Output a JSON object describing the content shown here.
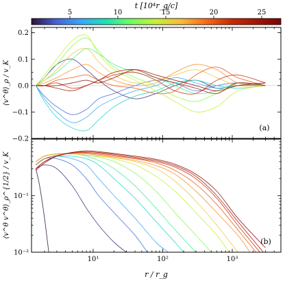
{
  "chart_data": [
    {
      "panel_label": "(a)",
      "type": "line",
      "ylabel": "⟨v^θ⟩_ρ / v_K",
      "xlabel": "",
      "xscale": "log",
      "xlim": [
        1.3,
        5000
      ],
      "ylim": [
        -0.2,
        0.22
      ],
      "ytick_labels": [
        "−0.2",
        "−0.1",
        "0.0",
        "0.1",
        "0.2"
      ],
      "ytick_values": [
        -0.2,
        -0.1,
        0.0,
        0.1,
        0.2
      ],
      "series_note": "one curve per snapshot time t, colored by colorbar",
      "series": [
        {
          "t": 2,
          "x": [
            1.5,
            2,
            3,
            5,
            8,
            12,
            20,
            40,
            80,
            150,
            300,
            600,
            1200,
            3000
          ],
          "y": [
            0.0,
            0.03,
            0.08,
            0.1,
            0.06,
            0.02,
            -0.02,
            -0.05,
            -0.03,
            0.0,
            0.02,
            -0.01,
            0.0,
            0.0
          ]
        },
        {
          "t": 4,
          "x": [
            1.5,
            2,
            3,
            5,
            8,
            12,
            20,
            40,
            80,
            150,
            300,
            600,
            1200,
            3000
          ],
          "y": [
            0.0,
            -0.04,
            -0.08,
            -0.11,
            -0.09,
            -0.05,
            -0.03,
            0.0,
            0.02,
            0.01,
            -0.02,
            0.0,
            0.01,
            0.0
          ]
        },
        {
          "t": 6,
          "x": [
            1.5,
            2,
            3,
            5,
            8,
            12,
            20,
            40,
            80,
            150,
            300,
            600,
            1200,
            3000
          ],
          "y": [
            0.0,
            -0.05,
            -0.1,
            -0.14,
            -0.12,
            -0.08,
            -0.05,
            -0.02,
            0.0,
            0.03,
            0.01,
            -0.01,
            0.0,
            0.0
          ]
        },
        {
          "t": 8,
          "x": [
            1.5,
            2,
            3,
            5,
            8,
            12,
            20,
            40,
            80,
            150,
            300,
            600,
            1200,
            3000
          ],
          "y": [
            0.0,
            -0.06,
            -0.12,
            -0.16,
            -0.17,
            -0.13,
            -0.08,
            -0.04,
            -0.02,
            0.01,
            0.02,
            0.0,
            -0.01,
            0.0
          ]
        },
        {
          "t": 10,
          "x": [
            1.5,
            2,
            3,
            5,
            8,
            12,
            20,
            40,
            80,
            150,
            300,
            600,
            1200,
            3000
          ],
          "y": [
            0.0,
            0.02,
            0.05,
            0.1,
            0.14,
            0.12,
            0.08,
            0.05,
            0.03,
            0.0,
            -0.03,
            -0.02,
            0.01,
            0.0
          ]
        },
        {
          "t": 12,
          "x": [
            1.5,
            2,
            3,
            5,
            8,
            12,
            20,
            40,
            80,
            150,
            300,
            600,
            1200,
            3000
          ],
          "y": [
            0.0,
            0.03,
            0.08,
            0.15,
            0.18,
            0.13,
            0.07,
            0.03,
            0.0,
            -0.04,
            -0.06,
            -0.03,
            0.0,
            0.0
          ]
        },
        {
          "t": 14,
          "x": [
            1.5,
            2,
            3,
            5,
            8,
            12,
            20,
            40,
            80,
            150,
            300,
            600,
            1200,
            3000
          ],
          "y": [
            0.0,
            0.04,
            0.1,
            0.17,
            0.19,
            0.12,
            0.06,
            0.02,
            -0.02,
            -0.06,
            -0.1,
            -0.08,
            -0.02,
            0.0
          ]
        },
        {
          "t": 16,
          "x": [
            1.5,
            2,
            3,
            5,
            8,
            12,
            20,
            40,
            80,
            150,
            300,
            600,
            1200,
            3000
          ],
          "y": [
            0.0,
            0.02,
            0.06,
            0.12,
            0.14,
            0.09,
            0.04,
            0.01,
            0.02,
            0.04,
            0.06,
            0.03,
            0.0,
            0.0
          ]
        },
        {
          "t": 18,
          "x": [
            1.5,
            2,
            3,
            5,
            8,
            12,
            20,
            40,
            80,
            150,
            300,
            600,
            1200,
            3000
          ],
          "y": [
            0.0,
            0.01,
            0.03,
            0.06,
            0.08,
            0.05,
            0.02,
            0.0,
            0.01,
            0.05,
            0.08,
            0.06,
            0.01,
            0.0
          ]
        },
        {
          "t": 20,
          "x": [
            1.5,
            2,
            3,
            5,
            8,
            12,
            20,
            40,
            80,
            150,
            300,
            600,
            1200,
            3000
          ],
          "y": [
            0.0,
            0.0,
            0.02,
            0.03,
            0.04,
            0.02,
            0.0,
            -0.01,
            -0.03,
            -0.02,
            0.04,
            0.07,
            0.03,
            0.0
          ]
        },
        {
          "t": 22,
          "x": [
            1.5,
            2,
            3,
            5,
            8,
            12,
            20,
            40,
            80,
            150,
            300,
            600,
            1200,
            3000
          ],
          "y": [
            0.0,
            0.0,
            0.01,
            -0.01,
            0.0,
            0.02,
            0.04,
            0.05,
            0.02,
            -0.02,
            -0.03,
            0.02,
            0.04,
            0.01
          ]
        },
        {
          "t": 24,
          "x": [
            1.5,
            2,
            3,
            5,
            8,
            12,
            20,
            40,
            80,
            150,
            300,
            600,
            1200,
            3000
          ],
          "y": [
            0.0,
            0.0,
            -0.01,
            -0.02,
            0.0,
            0.02,
            0.05,
            0.06,
            0.03,
            0.01,
            -0.01,
            -0.03,
            0.01,
            0.0
          ]
        },
        {
          "t": 26,
          "x": [
            1.5,
            2,
            3,
            5,
            8,
            12,
            20,
            40,
            80,
            150,
            300,
            600,
            1200,
            3000
          ],
          "y": [
            0.0,
            0.0,
            0.0,
            0.01,
            0.02,
            0.01,
            0.03,
            0.06,
            0.04,
            0.02,
            0.0,
            -0.02,
            0.0,
            0.01
          ]
        }
      ]
    },
    {
      "panel_label": "(b)",
      "type": "line",
      "ylabel": "⟨v^θ v^θ⟩_ρ^{1/2} / v_K",
      "xlabel": "r / r_g",
      "xscale": "log",
      "yscale": "log",
      "xlim": [
        1.3,
        5000
      ],
      "ylim": [
        0.01,
        1.0
      ],
      "xtick_labels": [
        "10¹",
        "10²",
        "10³"
      ],
      "xtick_values": [
        10,
        100,
        1000
      ],
      "ytick_labels": [
        "10⁻²",
        "10⁻¹"
      ],
      "ytick_values": [
        0.01,
        0.1
      ],
      "series": [
        {
          "t": 1,
          "x": [
            1.5,
            1.7,
            2,
            2.3
          ],
          "y": [
            0.3,
            0.15,
            0.04,
            0.01
          ]
        },
        {
          "t": 2,
          "x": [
            1.5,
            2,
            3,
            5,
            8,
            12,
            20,
            30
          ],
          "y": [
            0.3,
            0.35,
            0.3,
            0.15,
            0.06,
            0.03,
            0.015,
            0.01
          ]
        },
        {
          "t": 4,
          "x": [
            1.5,
            2,
            3,
            5,
            8,
            12,
            20,
            40,
            60
          ],
          "y": [
            0.35,
            0.45,
            0.45,
            0.35,
            0.2,
            0.1,
            0.05,
            0.02,
            0.01
          ]
        },
        {
          "t": 6,
          "x": [
            1.5,
            2,
            3,
            5,
            8,
            12,
            20,
            40,
            80,
            120
          ],
          "y": [
            0.35,
            0.45,
            0.5,
            0.45,
            0.35,
            0.2,
            0.1,
            0.04,
            0.015,
            0.01
          ]
        },
        {
          "t": 8,
          "x": [
            1.5,
            2,
            3,
            5,
            8,
            12,
            20,
            40,
            80,
            150,
            200
          ],
          "y": [
            0.35,
            0.45,
            0.5,
            0.5,
            0.45,
            0.35,
            0.2,
            0.09,
            0.035,
            0.015,
            0.01
          ]
        },
        {
          "t": 10,
          "x": [
            1.5,
            2,
            3,
            5,
            8,
            12,
            20,
            40,
            80,
            150,
            300
          ],
          "y": [
            0.4,
            0.5,
            0.55,
            0.55,
            0.5,
            0.42,
            0.3,
            0.15,
            0.06,
            0.025,
            0.01
          ]
        },
        {
          "t": 12,
          "x": [
            1.5,
            2,
            3,
            5,
            8,
            12,
            20,
            40,
            80,
            150,
            300,
            500
          ],
          "y": [
            0.4,
            0.5,
            0.55,
            0.55,
            0.52,
            0.48,
            0.4,
            0.25,
            0.12,
            0.05,
            0.02,
            0.01
          ]
        },
        {
          "t": 14,
          "x": [
            1.5,
            2,
            3,
            5,
            8,
            12,
            20,
            40,
            80,
            150,
            300,
            600,
            900
          ],
          "y": [
            0.4,
            0.5,
            0.55,
            0.55,
            0.52,
            0.5,
            0.45,
            0.35,
            0.22,
            0.12,
            0.05,
            0.02,
            0.01
          ]
        },
        {
          "t": 16,
          "x": [
            1.5,
            2,
            3,
            5,
            8,
            12,
            20,
            40,
            80,
            150,
            300,
            600,
            1200
          ],
          "y": [
            0.4,
            0.5,
            0.55,
            0.55,
            0.52,
            0.5,
            0.47,
            0.4,
            0.3,
            0.18,
            0.08,
            0.03,
            0.01
          ]
        },
        {
          "t": 18,
          "x": [
            1.5,
            2,
            3,
            5,
            8,
            12,
            20,
            40,
            80,
            150,
            300,
            600,
            1200,
            1800
          ],
          "y": [
            0.4,
            0.5,
            0.55,
            0.56,
            0.55,
            0.52,
            0.48,
            0.42,
            0.34,
            0.24,
            0.12,
            0.05,
            0.02,
            0.01
          ]
        },
        {
          "t": 20,
          "x": [
            1.5,
            2,
            3,
            5,
            8,
            12,
            20,
            40,
            80,
            150,
            300,
            600,
            1200,
            2200
          ],
          "y": [
            0.35,
            0.45,
            0.52,
            0.56,
            0.56,
            0.54,
            0.5,
            0.45,
            0.38,
            0.28,
            0.16,
            0.07,
            0.025,
            0.01
          ]
        },
        {
          "t": 22,
          "x": [
            1.5,
            2,
            3,
            5,
            8,
            12,
            20,
            40,
            80,
            150,
            300,
            600,
            1200,
            2500
          ],
          "y": [
            0.3,
            0.4,
            0.5,
            0.57,
            0.58,
            0.56,
            0.52,
            0.46,
            0.4,
            0.32,
            0.2,
            0.09,
            0.03,
            0.01
          ]
        },
        {
          "t": 24,
          "x": [
            1.5,
            2,
            3,
            5,
            8,
            12,
            20,
            40,
            80,
            150,
            300,
            600,
            1200,
            2800
          ],
          "y": [
            0.3,
            0.4,
            0.5,
            0.58,
            0.6,
            0.58,
            0.54,
            0.48,
            0.42,
            0.34,
            0.22,
            0.1,
            0.035,
            0.01
          ]
        },
        {
          "t": 26,
          "x": [
            1.5,
            2,
            3,
            5,
            8,
            12,
            20,
            40,
            80,
            150,
            300,
            600,
            1200,
            3000
          ],
          "y": [
            0.28,
            0.38,
            0.5,
            0.58,
            0.62,
            0.6,
            0.56,
            0.5,
            0.44,
            0.36,
            0.24,
            0.12,
            0.04,
            0.012
          ]
        }
      ]
    }
  ],
  "colorbar": {
    "label": "t [10⁴r_g/c]",
    "range": [
      1,
      27
    ],
    "tick_values": [
      5,
      10,
      15,
      20,
      25
    ],
    "tick_labels": [
      "5",
      "10",
      "15",
      "20",
      "25"
    ],
    "colormap": "turbo"
  }
}
